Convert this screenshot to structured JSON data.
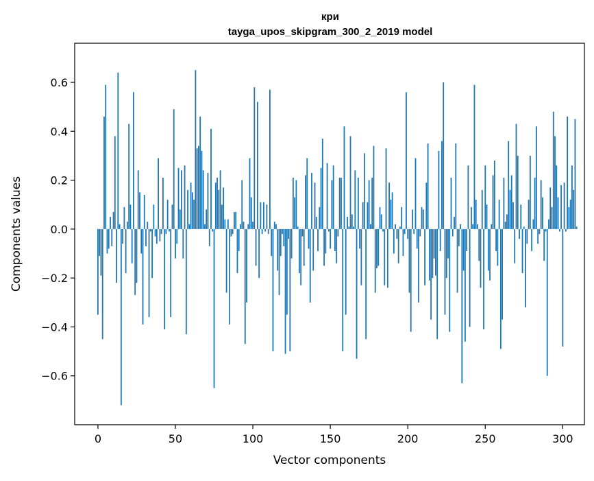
{
  "chart_data": {
    "type": "bar",
    "title": "кри",
    "subtitle": "tayga_upos_skipgram_300_2_2019 model",
    "xlabel": "Vector components",
    "ylabel": "Components values",
    "xlim": [
      -15,
      314
    ],
    "ylim": [
      -0.8,
      0.76
    ],
    "xticks": [
      0,
      50,
      100,
      150,
      200,
      250,
      300
    ],
    "yticks": [
      -0.6,
      -0.4,
      -0.2,
      0.0,
      0.2,
      0.4,
      0.6
    ],
    "ytick_labels": [
      "−0.6",
      "−0.4",
      "−0.2",
      "0.0",
      "0.2",
      "0.4",
      "0.6"
    ],
    "grid": false,
    "bar_color": "#1f77b4",
    "series": [
      {
        "values": [
          -0.35,
          -0.11,
          -0.19,
          -0.45,
          0.46,
          0.59,
          -0.1,
          -0.08,
          0.05,
          -0.07,
          0.07,
          0.38,
          -0.22,
          0.64,
          0.02,
          -0.72,
          -0.06,
          0.09,
          -0.18,
          0.03,
          0.43,
          0.1,
          -0.14,
          0.56,
          -0.27,
          -0.22,
          0.24,
          0.15,
          -0.1,
          -0.39,
          0.14,
          -0.07,
          0.03,
          -0.36,
          -0.01,
          -0.2,
          0.1,
          -0.03,
          -0.06,
          0.29,
          -0.05,
          -0.02,
          0.21,
          -0.41,
          -0.02,
          0.12,
          -0.01,
          -0.36,
          0.1,
          0.49,
          -0.12,
          -0.06,
          0.25,
          0.08,
          0.24,
          -0.12,
          0.26,
          -0.43,
          0.16,
          0.02,
          0.19,
          0.15,
          0.12,
          0.65,
          0.33,
          0.34,
          0.46,
          0.32,
          0.24,
          0.02,
          0.08,
          0.23,
          -0.07,
          0.41,
          -0.01,
          -0.65,
          0.19,
          0.21,
          0.16,
          0.24,
          0.1,
          0.17,
          0.04,
          -0.26,
          0.04,
          -0.39,
          -0.03,
          -0.02,
          0.07,
          0.07,
          -0.18,
          -0.09,
          0.02,
          0.2,
          0.03,
          -0.47,
          -0.3,
          0.02,
          0.29,
          0.13,
          0.03,
          0.58,
          -0.15,
          0.52,
          -0.2,
          0.11,
          -0.02,
          0.11,
          -0.01,
          0.1,
          -0.02,
          0.57,
          -0.11,
          -0.5,
          0.03,
          0.02,
          -0.17,
          -0.27,
          -0.11,
          -0.02,
          -0.07,
          -0.51,
          -0.35,
          -0.04,
          -0.5,
          -0.12,
          0.21,
          0.13,
          0.2,
          0.01,
          -0.18,
          -0.23,
          -0.03,
          -0.15,
          0.22,
          0.29,
          -0.08,
          -0.3,
          0.23,
          -0.17,
          0.19,
          0.05,
          -0.09,
          0.09,
          0.25,
          0.37,
          -0.15,
          -0.1,
          0.27,
          -0.01,
          -0.08,
          0.2,
          0.26,
          -0.09,
          -0.14,
          -0.03,
          0.21,
          0.21,
          -0.5,
          0.42,
          -0.35,
          0.05,
          0.01,
          0.38,
          0.06,
          0.01,
          0.24,
          -0.53,
          0.21,
          -0.08,
          -0.23,
          0.11,
          0.31,
          -0.45,
          0.11,
          0.2,
          0.02,
          0.21,
          0.34,
          -0.26,
          -0.16,
          -0.15,
          0.09,
          0.06,
          -0.01,
          -0.23,
          0.33,
          -0.24,
          0.19,
          0.12,
          0.15,
          -0.1,
          0.02,
          -0.04,
          -0.14,
          0.01,
          0.09,
          -0.11,
          -0.02,
          0.56,
          -0.04,
          -0.26,
          -0.42,
          0.08,
          -0.02,
          0.29,
          -0.08,
          -0.3,
          -0.03,
          0.09,
          0.08,
          -0.23,
          0.19,
          0.35,
          -0.21,
          -0.37,
          -0.2,
          -0.12,
          -0.19,
          -0.45,
          0.32,
          -0.09,
          0.36,
          0.6,
          -0.35,
          -0.2,
          -0.12,
          -0.42,
          0.21,
          -0.03,
          0.05,
          0.35,
          -0.26,
          -0.07,
          0.02,
          -0.63,
          -0.17,
          -0.46,
          -0.09,
          0.26,
          -0.4,
          0.09,
          0.02,
          0.59,
          0.12,
          0.02,
          -0.13,
          -0.24,
          0.16,
          -0.41,
          0.26,
          0.1,
          -0.17,
          -0.21,
          0.02,
          0.22,
          0.28,
          -0.09,
          -0.15,
          0.12,
          -0.49,
          -0.37,
          0.21,
          0.03,
          0.06,
          0.36,
          0.16,
          0.22,
          0.11,
          -0.14,
          0.43,
          0.3,
          -0.04,
          0.1,
          -0.18,
          0.01,
          -0.32,
          -0.06,
          0.12,
          0.3,
          -0.09,
          0.04,
          0.21,
          0.42,
          -0.06,
          -0.02,
          0.2,
          0.13,
          -0.13,
          -0.01,
          -0.6,
          0.04,
          0.17,
          0.09,
          0.48,
          0.38,
          0.26,
          0.13,
          -0.01,
          0.18,
          -0.48,
          0.19,
          -0.01,
          0.46,
          0.09,
          0.12,
          0.26,
          0.16,
          0.45,
          0.01
        ]
      }
    ]
  }
}
